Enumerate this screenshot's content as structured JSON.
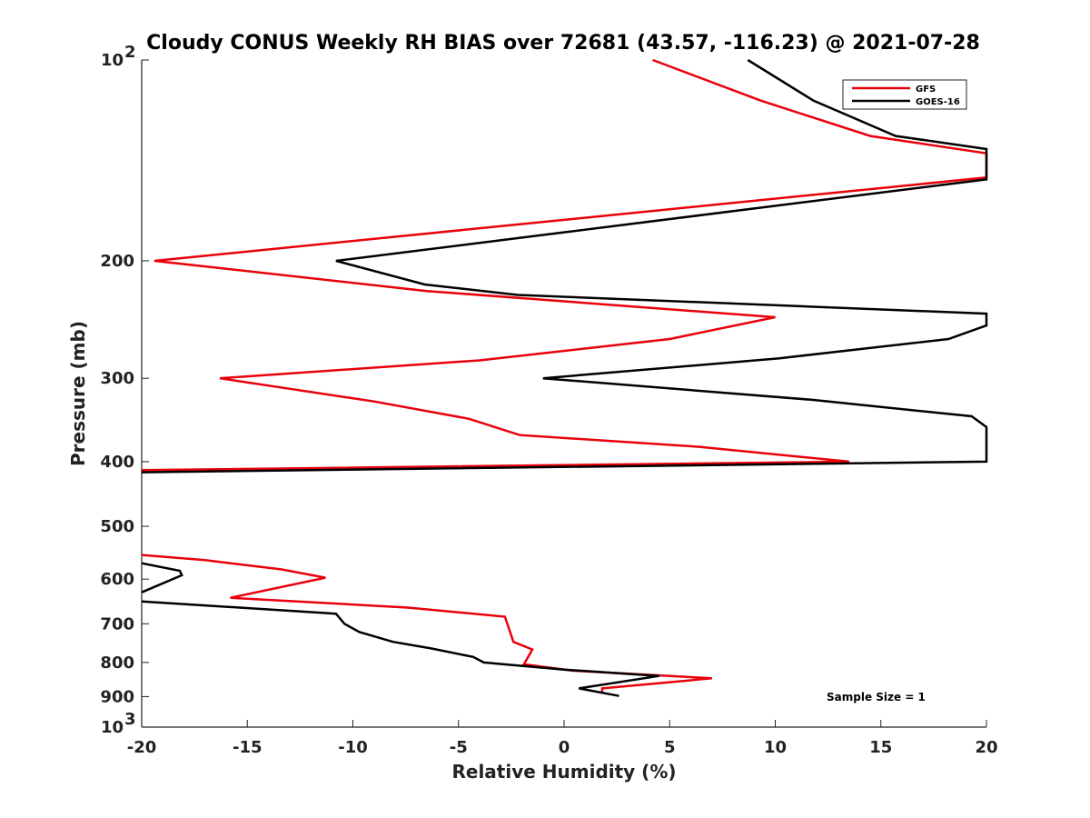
{
  "chart_data": {
    "type": "line",
    "title": "Cloudy CONUS Weekly RH BIAS over 72681 (43.57, -116.23) @ 2021-07-28",
    "xlabel": "Relative Humidity (%)",
    "ylabel": "Pressure (mb)",
    "xlim": [
      -20,
      20
    ],
    "ylim": [
      100,
      1000
    ],
    "y_scale": "log",
    "y_reversed": true,
    "xticks": [
      "-20",
      "-15",
      "-10",
      "-5",
      "0",
      "5",
      "10",
      "15",
      "20"
    ],
    "yticks": [
      {
        "value": 100,
        "base": "10",
        "exp": "2"
      },
      {
        "value": 200,
        "label": "200"
      },
      {
        "value": 300,
        "label": "300"
      },
      {
        "value": 400,
        "label": "400"
      },
      {
        "value": 500,
        "label": "500"
      },
      {
        "value": 600,
        "label": "600"
      },
      {
        "value": 700,
        "label": "700"
      },
      {
        "value": 800,
        "label": "800"
      },
      {
        "value": 900,
        "label": "900"
      },
      {
        "value": 1000,
        "base": "10",
        "exp": "3"
      }
    ],
    "grid": false,
    "legend_position": "top-right",
    "annotation": "Sample Size = 1",
    "series": [
      {
        "name": "GFS",
        "color": "#e8000b",
        "points": [
          [
            4.2,
            100
          ],
          [
            9.3,
            115
          ],
          [
            14.5,
            130
          ],
          [
            20,
            138
          ],
          [
            20,
            150
          ],
          [
            -19.4,
            200
          ],
          [
            -6.5,
            222
          ],
          [
            10,
            243
          ],
          [
            5,
            262
          ],
          [
            -4,
            282
          ],
          [
            -16.3,
            300
          ],
          [
            -9,
            325
          ],
          [
            -4.5,
            345
          ],
          [
            -2.1,
            365
          ],
          [
            6.4,
            380
          ],
          [
            13.5,
            400
          ],
          [
            -20,
            412
          ],
          null,
          [
            -20,
            552
          ],
          [
            -17,
            562
          ],
          [
            -13.4,
            580
          ],
          [
            -11.3,
            597
          ],
          [
            -15.8,
            640
          ],
          [
            -7.4,
            662
          ],
          [
            -2.8,
            683
          ],
          [
            -2.4,
            745
          ],
          [
            -1.5,
            765
          ],
          [
            -1.9,
            805
          ],
          [
            0.4,
            823
          ],
          [
            7,
            845
          ],
          [
            1.8,
            875
          ],
          [
            1.8,
            890
          ]
        ]
      },
      {
        "name": "GOES-16",
        "color": "#000000",
        "points": [
          [
            8.7,
            100
          ],
          [
            11.8,
            115
          ],
          [
            15.7,
            130
          ],
          [
            20,
            136
          ],
          [
            20,
            151
          ],
          [
            -10.8,
            200
          ],
          [
            -6.6,
            217
          ],
          [
            -2.2,
            225
          ],
          [
            20,
            240
          ],
          [
            20,
            250
          ],
          [
            18.2,
            262
          ],
          [
            10.2,
            280
          ],
          [
            -1,
            300
          ],
          [
            11.7,
            323
          ],
          [
            19.3,
            342
          ],
          [
            20,
            355
          ],
          [
            20,
            400
          ],
          [
            -20,
            415
          ],
          null,
          [
            -20,
            568
          ],
          [
            -18.2,
            583
          ],
          [
            -18.1,
            592
          ],
          [
            -20,
            628
          ],
          null,
          [
            -20,
            648
          ],
          [
            -10.8,
            676
          ],
          [
            -10.4,
            700
          ],
          [
            -9.7,
            720
          ],
          [
            -8.1,
            745
          ],
          [
            -6.3,
            762
          ],
          [
            -4.3,
            785
          ],
          [
            -3.8,
            800
          ],
          [
            0,
            820
          ],
          [
            4.5,
            838
          ],
          [
            0.7,
            875
          ],
          [
            2.6,
            898
          ]
        ]
      }
    ]
  }
}
